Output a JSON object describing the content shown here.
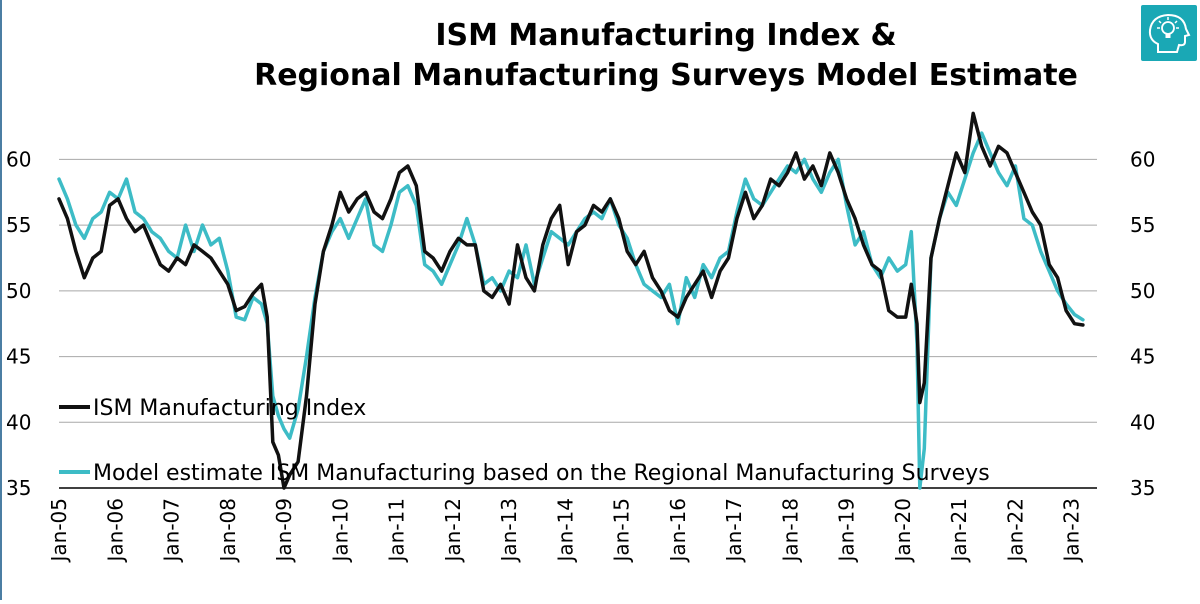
{
  "logo": {
    "icon": "lightbulb-head-icon",
    "color": "#1aa8b5"
  },
  "chart_data": {
    "type": "line",
    "title": [
      "ISM Manufacturing Index &",
      "Regional Manufacturing Surveys Model Estimate"
    ],
    "xlabel": "",
    "ylabel": "",
    "ylim": [
      35,
      63
    ],
    "xlim": [
      2005.0,
      2023.45
    ],
    "yticks": [
      35,
      40,
      45,
      50,
      55,
      60
    ],
    "right_axis": true,
    "grid": "horizontal",
    "legend_position": "lower-left",
    "x_ticks": [
      {
        "label": "Jan-05",
        "x": 2005
      },
      {
        "label": "Jan-06",
        "x": 2006
      },
      {
        "label": "Jan-07",
        "x": 2007
      },
      {
        "label": "Jan-08",
        "x": 2008
      },
      {
        "label": "Jan-09",
        "x": 2009
      },
      {
        "label": "Jan-10",
        "x": 2010
      },
      {
        "label": "Jan-11",
        "x": 2011
      },
      {
        "label": "Jan-12",
        "x": 2012
      },
      {
        "label": "Jan-13",
        "x": 2013
      },
      {
        "label": "Jan-14",
        "x": 2014
      },
      {
        "label": "Jan-15",
        "x": 2015
      },
      {
        "label": "Jan-16",
        "x": 2016
      },
      {
        "label": "Jan-17",
        "x": 2017
      },
      {
        "label": "Jan-18",
        "x": 2018
      },
      {
        "label": "Jan-19",
        "x": 2019
      },
      {
        "label": "Jan-20",
        "x": 2020
      },
      {
        "label": "Jan-21",
        "x": 2021
      },
      {
        "label": "Jan-22",
        "x": 2022
      },
      {
        "label": "Jan-23",
        "x": 2023
      }
    ],
    "series": [
      {
        "name": "ISM Manufacturing Index",
        "color": "#111111",
        "points": [
          [
            2005.0,
            57.0
          ],
          [
            2005.15,
            55.5
          ],
          [
            2005.3,
            53.0
          ],
          [
            2005.45,
            51.0
          ],
          [
            2005.6,
            52.5
          ],
          [
            2005.75,
            53.0
          ],
          [
            2005.9,
            56.5
          ],
          [
            2006.05,
            57.0
          ],
          [
            2006.2,
            55.5
          ],
          [
            2006.35,
            54.5
          ],
          [
            2006.5,
            55.0
          ],
          [
            2006.65,
            53.5
          ],
          [
            2006.8,
            52.0
          ],
          [
            2006.95,
            51.5
          ],
          [
            2007.1,
            52.5
          ],
          [
            2007.25,
            52.0
          ],
          [
            2007.4,
            53.5
          ],
          [
            2007.55,
            53.0
          ],
          [
            2007.7,
            52.5
          ],
          [
            2007.85,
            51.5
          ],
          [
            2008.0,
            50.5
          ],
          [
            2008.15,
            48.5
          ],
          [
            2008.3,
            48.8
          ],
          [
            2008.45,
            49.8
          ],
          [
            2008.6,
            50.5
          ],
          [
            2008.7,
            48.0
          ],
          [
            2008.8,
            38.5
          ],
          [
            2008.9,
            37.5
          ],
          [
            2009.0,
            35.0
          ],
          [
            2009.1,
            36.0
          ],
          [
            2009.25,
            37.0
          ],
          [
            2009.4,
            42.0
          ],
          [
            2009.55,
            49.0
          ],
          [
            2009.7,
            53.0
          ],
          [
            2009.85,
            55.0
          ],
          [
            2010.0,
            57.5
          ],
          [
            2010.15,
            56.0
          ],
          [
            2010.3,
            57.0
          ],
          [
            2010.45,
            57.5
          ],
          [
            2010.6,
            56.0
          ],
          [
            2010.75,
            55.5
          ],
          [
            2010.9,
            57.0
          ],
          [
            2011.05,
            59.0
          ],
          [
            2011.2,
            59.5
          ],
          [
            2011.35,
            58.0
          ],
          [
            2011.5,
            53.0
          ],
          [
            2011.65,
            52.5
          ],
          [
            2011.8,
            51.5
          ],
          [
            2011.95,
            53.0
          ],
          [
            2012.1,
            54.0
          ],
          [
            2012.25,
            53.5
          ],
          [
            2012.4,
            53.5
          ],
          [
            2012.55,
            50.0
          ],
          [
            2012.7,
            49.5
          ],
          [
            2012.85,
            50.5
          ],
          [
            2013.0,
            49.0
          ],
          [
            2013.15,
            53.5
          ],
          [
            2013.3,
            51.0
          ],
          [
            2013.45,
            50.0
          ],
          [
            2013.6,
            53.5
          ],
          [
            2013.75,
            55.5
          ],
          [
            2013.9,
            56.5
          ],
          [
            2014.05,
            52.0
          ],
          [
            2014.2,
            54.5
          ],
          [
            2014.35,
            55.0
          ],
          [
            2014.5,
            56.5
          ],
          [
            2014.65,
            56.0
          ],
          [
            2014.8,
            57.0
          ],
          [
            2014.95,
            55.5
          ],
          [
            2015.1,
            53.0
          ],
          [
            2015.25,
            52.0
          ],
          [
            2015.4,
            53.0
          ],
          [
            2015.55,
            51.0
          ],
          [
            2015.7,
            50.0
          ],
          [
            2015.85,
            48.5
          ],
          [
            2016.0,
            48.0
          ],
          [
            2016.15,
            49.5
          ],
          [
            2016.3,
            50.5
          ],
          [
            2016.45,
            51.5
          ],
          [
            2016.6,
            49.5
          ],
          [
            2016.75,
            51.5
          ],
          [
            2016.9,
            52.5
          ],
          [
            2017.05,
            55.5
          ],
          [
            2017.2,
            57.5
          ],
          [
            2017.35,
            55.5
          ],
          [
            2017.5,
            56.5
          ],
          [
            2017.65,
            58.5
          ],
          [
            2017.8,
            58.0
          ],
          [
            2017.95,
            59.0
          ],
          [
            2018.1,
            60.5
          ],
          [
            2018.25,
            58.5
          ],
          [
            2018.4,
            59.5
          ],
          [
            2018.55,
            58.0
          ],
          [
            2018.7,
            60.5
          ],
          [
            2018.85,
            59.0
          ],
          [
            2019.0,
            57.0
          ],
          [
            2019.15,
            55.5
          ],
          [
            2019.3,
            53.5
          ],
          [
            2019.45,
            52.0
          ],
          [
            2019.6,
            51.5
          ],
          [
            2019.75,
            48.5
          ],
          [
            2019.9,
            48.0
          ],
          [
            2020.05,
            48.0
          ],
          [
            2020.15,
            50.5
          ],
          [
            2020.25,
            47.5
          ],
          [
            2020.3,
            41.5
          ],
          [
            2020.38,
            43.0
          ],
          [
            2020.5,
            52.5
          ],
          [
            2020.65,
            55.5
          ],
          [
            2020.8,
            58.0
          ],
          [
            2020.95,
            60.5
          ],
          [
            2021.1,
            59.0
          ],
          [
            2021.25,
            63.5
          ],
          [
            2021.4,
            61.0
          ],
          [
            2021.55,
            59.5
          ],
          [
            2021.7,
            61.0
          ],
          [
            2021.85,
            60.5
          ],
          [
            2022.0,
            59.0
          ],
          [
            2022.15,
            57.5
          ],
          [
            2022.3,
            56.0
          ],
          [
            2022.45,
            55.0
          ],
          [
            2022.6,
            52.0
          ],
          [
            2022.75,
            51.0
          ],
          [
            2022.9,
            48.5
          ],
          [
            2023.05,
            47.5
          ],
          [
            2023.2,
            47.4
          ]
        ]
      },
      {
        "name": "Model estimate ISM Manufacturing based on the Regional Manufacturing Surveys",
        "color": "#3dbcc6",
        "points": [
          [
            2005.0,
            58.5
          ],
          [
            2005.15,
            57.0
          ],
          [
            2005.3,
            55.0
          ],
          [
            2005.45,
            54.0
          ],
          [
            2005.6,
            55.5
          ],
          [
            2005.75,
            56.0
          ],
          [
            2005.9,
            57.5
          ],
          [
            2006.05,
            57.0
          ],
          [
            2006.2,
            58.5
          ],
          [
            2006.35,
            56.0
          ],
          [
            2006.5,
            55.5
          ],
          [
            2006.65,
            54.5
          ],
          [
            2006.8,
            54.0
          ],
          [
            2006.95,
            53.0
          ],
          [
            2007.1,
            52.5
          ],
          [
            2007.25,
            55.0
          ],
          [
            2007.4,
            53.0
          ],
          [
            2007.55,
            55.0
          ],
          [
            2007.7,
            53.5
          ],
          [
            2007.85,
            54.0
          ],
          [
            2008.0,
            51.5
          ],
          [
            2008.15,
            48.0
          ],
          [
            2008.3,
            47.8
          ],
          [
            2008.45,
            49.5
          ],
          [
            2008.6,
            49.0
          ],
          [
            2008.7,
            47.5
          ],
          [
            2008.8,
            42.0
          ],
          [
            2008.9,
            40.5
          ],
          [
            2009.0,
            39.5
          ],
          [
            2009.1,
            38.8
          ],
          [
            2009.25,
            41.0
          ],
          [
            2009.4,
            45.0
          ],
          [
            2009.55,
            49.5
          ],
          [
            2009.7,
            53.0
          ],
          [
            2009.85,
            54.5
          ],
          [
            2010.0,
            55.5
          ],
          [
            2010.15,
            54.0
          ],
          [
            2010.3,
            55.5
          ],
          [
            2010.45,
            57.0
          ],
          [
            2010.6,
            53.5
          ],
          [
            2010.75,
            53.0
          ],
          [
            2010.9,
            55.0
          ],
          [
            2011.05,
            57.5
          ],
          [
            2011.2,
            58.0
          ],
          [
            2011.35,
            56.5
          ],
          [
            2011.5,
            52.0
          ],
          [
            2011.65,
            51.5
          ],
          [
            2011.8,
            50.5
          ],
          [
            2011.95,
            52.0
          ],
          [
            2012.1,
            53.5
          ],
          [
            2012.25,
            55.5
          ],
          [
            2012.4,
            53.5
          ],
          [
            2012.55,
            50.5
          ],
          [
            2012.7,
            51.0
          ],
          [
            2012.85,
            50.0
          ],
          [
            2013.0,
            51.5
          ],
          [
            2013.15,
            51.0
          ],
          [
            2013.3,
            53.5
          ],
          [
            2013.45,
            50.5
          ],
          [
            2013.6,
            52.5
          ],
          [
            2013.75,
            54.5
          ],
          [
            2013.9,
            54.0
          ],
          [
            2014.05,
            53.5
          ],
          [
            2014.2,
            54.5
          ],
          [
            2014.35,
            55.5
          ],
          [
            2014.5,
            56.0
          ],
          [
            2014.65,
            55.5
          ],
          [
            2014.8,
            57.0
          ],
          [
            2014.95,
            55.0
          ],
          [
            2015.1,
            54.0
          ],
          [
            2015.25,
            52.0
          ],
          [
            2015.4,
            50.5
          ],
          [
            2015.55,
            50.0
          ],
          [
            2015.7,
            49.5
          ],
          [
            2015.85,
            50.5
          ],
          [
            2016.0,
            47.5
          ],
          [
            2016.15,
            51.0
          ],
          [
            2016.3,
            49.5
          ],
          [
            2016.45,
            52.0
          ],
          [
            2016.6,
            51.0
          ],
          [
            2016.75,
            52.5
          ],
          [
            2016.9,
            53.0
          ],
          [
            2017.05,
            56.0
          ],
          [
            2017.2,
            58.5
          ],
          [
            2017.35,
            57.0
          ],
          [
            2017.5,
            56.5
          ],
          [
            2017.65,
            57.5
          ],
          [
            2017.8,
            58.5
          ],
          [
            2017.95,
            59.5
          ],
          [
            2018.1,
            59.0
          ],
          [
            2018.25,
            60.0
          ],
          [
            2018.4,
            58.5
          ],
          [
            2018.55,
            57.5
          ],
          [
            2018.7,
            59.0
          ],
          [
            2018.85,
            60.0
          ],
          [
            2019.0,
            56.5
          ],
          [
            2019.15,
            53.5
          ],
          [
            2019.3,
            54.5
          ],
          [
            2019.45,
            52.0
          ],
          [
            2019.6,
            51.0
          ],
          [
            2019.75,
            52.5
          ],
          [
            2019.9,
            51.5
          ],
          [
            2020.05,
            52.0
          ],
          [
            2020.15,
            54.5
          ],
          [
            2020.25,
            46.0
          ],
          [
            2020.3,
            35.0
          ],
          [
            2020.38,
            38.0
          ],
          [
            2020.5,
            52.5
          ],
          [
            2020.65,
            55.5
          ],
          [
            2020.8,
            57.5
          ],
          [
            2020.95,
            56.5
          ],
          [
            2021.1,
            58.5
          ],
          [
            2021.25,
            60.5
          ],
          [
            2021.4,
            62.0
          ],
          [
            2021.55,
            60.5
          ],
          [
            2021.7,
            59.0
          ],
          [
            2021.85,
            58.0
          ],
          [
            2022.0,
            59.5
          ],
          [
            2022.15,
            55.5
          ],
          [
            2022.3,
            55.0
          ],
          [
            2022.45,
            53.0
          ],
          [
            2022.6,
            51.5
          ],
          [
            2022.75,
            50.0
          ],
          [
            2022.9,
            49.0
          ],
          [
            2023.05,
            48.2
          ],
          [
            2023.2,
            47.8
          ]
        ]
      }
    ]
  }
}
